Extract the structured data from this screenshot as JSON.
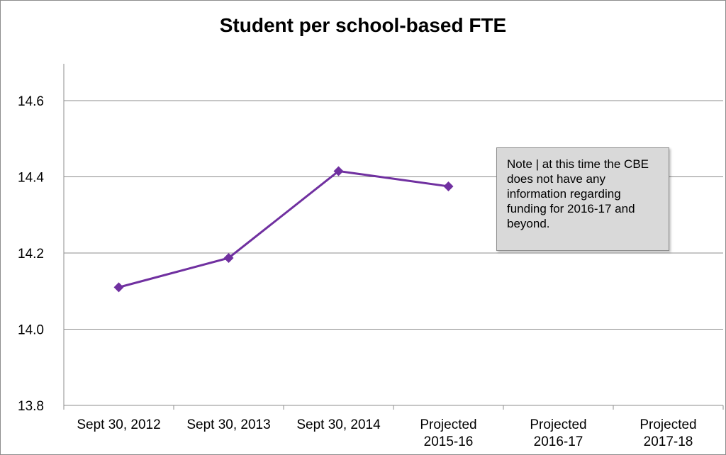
{
  "chart_data": {
    "type": "line",
    "title": "Student per school-based FTE",
    "xlabel": "",
    "ylabel": "",
    "categories": [
      [
        "Sept 30, 2012"
      ],
      [
        "Sept 30, 2013"
      ],
      [
        "Sept 30, 2014"
      ],
      [
        "Projected",
        "2015-16"
      ],
      [
        "Projected",
        "2016-17"
      ],
      [
        "Projected",
        "2017-18"
      ]
    ],
    "series": [
      {
        "values": [
          14.11,
          14.187,
          14.415,
          14.375,
          null,
          null
        ],
        "color": "#7030a0",
        "marker": "diamond"
      }
    ],
    "ylim": [
      13.8,
      14.7
    ],
    "yticks": [
      13.8,
      14.0,
      14.2,
      14.4,
      14.6
    ],
    "ytick_labels": [
      "13.8",
      "14.0",
      "14.2",
      "14.4",
      "14.6"
    ],
    "grid": true,
    "annotation": "Note | at this time the CBE does not have any information regarding funding for 2016-17 and beyond."
  }
}
